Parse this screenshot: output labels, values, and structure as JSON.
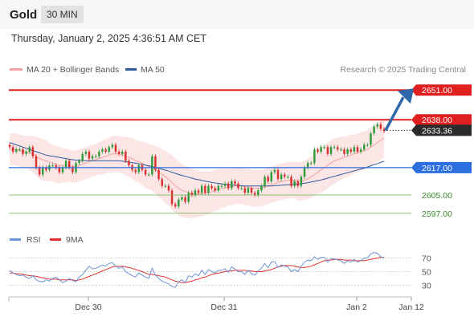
{
  "header": {
    "title": "Gold",
    "timeframe": "30 MIN"
  },
  "datetime": "Thursday, January 2, 2025 4:36:51 AM CET",
  "copyright": "Research © 2025 Trading Central",
  "colors": {
    "up": "#2e9a3a",
    "down": "#d8302f",
    "ma50": "#2d5c9e",
    "bollinger": "#f4a0a0",
    "resistance": "#e02020",
    "support": "#2e6fe0",
    "target_green": "#63b04a",
    "rsi": "#6d93d6",
    "rsi_ma": "#e03030",
    "arrow": "#2f67a8"
  },
  "chart_data": [
    {
      "type": "candlestick",
      "legend": [
        "MA 20 + Bollinger Bands",
        "MA 50"
      ],
      "ylim": [
        2592,
        2656
      ],
      "x_ticks": [
        "Dec 30",
        "Dec 31",
        "Jan 2",
        "Jan 12"
      ],
      "current_price": 2633.36,
      "levels": [
        {
          "label": "2651.00",
          "value": 2651.0,
          "kind": "resistance"
        },
        {
          "label": "2638.00",
          "value": 2638.0,
          "kind": "resistance"
        },
        {
          "label": "2633.36",
          "value": 2633.36,
          "kind": "last"
        },
        {
          "label": "2617.00",
          "value": 2617.0,
          "kind": "support"
        },
        {
          "label": "2605.00",
          "value": 2605.0,
          "kind": "target"
        },
        {
          "label": "2597.00",
          "value": 2597.0,
          "kind": "target"
        }
      ],
      "close": [
        2626,
        2624,
        2625,
        2625,
        2623,
        2624,
        2626,
        2622,
        2617,
        2614,
        2617,
        2616,
        2618,
        2618,
        2617,
        2615,
        2617,
        2620,
        2617,
        2615,
        2619,
        2620,
        2623,
        2624,
        2621,
        2622,
        2622,
        2624,
        2625,
        2624,
        2626,
        2627,
        2624,
        2623,
        2624,
        2620,
        2618,
        2616,
        2615,
        2618,
        2616,
        2614,
        2614,
        2622,
        2616,
        2612,
        2609,
        2609,
        2607,
        2601,
        2600,
        2603,
        2604,
        2602,
        2606,
        2605,
        2607,
        2606,
        2609,
        2606,
        2609,
        2608,
        2607,
        2609,
        2609,
        2610,
        2608,
        2611,
        2610,
        2608,
        2608,
        2606,
        2608,
        2606,
        2605,
        2607,
        2609,
        2613,
        2611,
        2615,
        2616,
        2612,
        2614,
        2613,
        2613,
        2609,
        2611,
        2609,
        2613,
        2617,
        2619,
        2619,
        2625,
        2624,
        2626,
        2626,
        2623,
        2626,
        2626,
        2625,
        2625,
        2623,
        2625,
        2624,
        2626,
        2624,
        2625,
        2627,
        2627,
        2632,
        2635,
        2636,
        2634,
        2633
      ],
      "open": [
        2627,
        2626,
        2624,
        2625,
        2625,
        2623,
        2624,
        2626,
        2622,
        2617,
        2614,
        2617,
        2616,
        2618,
        2618,
        2617,
        2615,
        2617,
        2620,
        2617,
        2615,
        2619,
        2620,
        2623,
        2624,
        2621,
        2622,
        2622,
        2624,
        2625,
        2624,
        2626,
        2627,
        2624,
        2623,
        2624,
        2620,
        2618,
        2616,
        2615,
        2618,
        2616,
        2614,
        2614,
        2622,
        2616,
        2612,
        2609,
        2609,
        2607,
        2601,
        2600,
        2603,
        2604,
        2602,
        2606,
        2605,
        2607,
        2606,
        2609,
        2606,
        2609,
        2608,
        2607,
        2609,
        2609,
        2610,
        2608,
        2611,
        2610,
        2608,
        2608,
        2606,
        2608,
        2606,
        2605,
        2607,
        2609,
        2613,
        2611,
        2615,
        2616,
        2612,
        2614,
        2613,
        2613,
        2609,
        2611,
        2609,
        2613,
        2617,
        2619,
        2619,
        2625,
        2624,
        2626,
        2626,
        2623,
        2626,
        2626,
        2625,
        2625,
        2623,
        2625,
        2624,
        2626,
        2624,
        2625,
        2627,
        2627,
        2632,
        2635,
        2636,
        2634
      ],
      "ma20": [
        2625,
        2625,
        2625,
        2624.5,
        2624,
        2624,
        2623.5,
        2623,
        2622,
        2621,
        2620.5,
        2620,
        2619.5,
        2619,
        2618.5,
        2618,
        2618,
        2618,
        2618,
        2617.5,
        2617.5,
        2618,
        2618.5,
        2619,
        2619.5,
        2620,
        2620.5,
        2621,
        2621.5,
        2622,
        2622.5,
        2623,
        2623,
        2623,
        2622.5,
        2622,
        2621.5,
        2621,
        2620,
        2619.5,
        2619,
        2618,
        2617.5,
        2617,
        2616,
        2615,
        2614,
        2613,
        2612,
        2610.5,
        2609,
        2608,
        2607,
        2606.5,
        2606,
        2605.5,
        2605.5,
        2605.5,
        2605.5,
        2606,
        2606,
        2606.5,
        2607,
        2607.5,
        2608,
        2608,
        2608.5,
        2608.5,
        2609,
        2609,
        2609,
        2608.5,
        2608.5,
        2608,
        2608,
        2608,
        2608,
        2608.5,
        2609,
        2609.5,
        2610,
        2610.5,
        2611,
        2611,
        2611.5,
        2611.5,
        2611.5,
        2611,
        2611,
        2611.5,
        2612,
        2613,
        2614,
        2615,
        2616,
        2617,
        2618,
        2619,
        2620,
        2620.5,
        2621,
        2621.5,
        2622,
        2622.5,
        2623,
        2623.5,
        2624,
        2624.5,
        2625,
        2626,
        2627,
        2628,
        2629,
        2630
      ],
      "ma50": [
        2628,
        2627.5,
        2627,
        2626.5,
        2626,
        2625.5,
        2625,
        2624.5,
        2624,
        2623.5,
        2623,
        2622.5,
        2622.2,
        2622,
        2621.7,
        2621.5,
        2621.2,
        2621,
        2620.7,
        2620.5,
        2620.3,
        2620.2,
        2620.1,
        2620,
        2620,
        2620,
        2620,
        2620,
        2620,
        2620,
        2620,
        2620,
        2620,
        2620,
        2619.8,
        2619.6,
        2619.4,
        2619.2,
        2619,
        2618.7,
        2618.4,
        2618.1,
        2617.8,
        2617.5,
        2617.1,
        2616.7,
        2616.3,
        2615.9,
        2615.5,
        2615,
        2614.5,
        2614,
        2613.6,
        2613.2,
        2612.8,
        2612.4,
        2612,
        2611.7,
        2611.4,
        2611.1,
        2610.8,
        2610.5,
        2610.3,
        2610.1,
        2609.9,
        2609.7,
        2609.5,
        2609.4,
        2609.3,
        2609.2,
        2609.1,
        2609,
        2609,
        2609,
        2609,
        2609,
        2609,
        2609,
        2609,
        2609,
        2609.1,
        2609.2,
        2609.3,
        2609.4,
        2609.5,
        2609.6,
        2609.7,
        2609.8,
        2610,
        2610.2,
        2610.4,
        2610.7,
        2611,
        2611.3,
        2611.6,
        2612,
        2612.4,
        2612.8,
        2613.2,
        2613.6,
        2614,
        2614.4,
        2614.8,
        2615.2,
        2615.6,
        2616,
        2616.4,
        2616.8,
        2617.3,
        2617.8,
        2618.3,
        2618.8,
        2619.3,
        2619.8
      ],
      "bb_width": [
        7,
        7,
        7,
        7,
        7,
        7,
        7.5,
        8,
        8.5,
        9,
        9,
        9,
        8.5,
        8,
        8,
        8,
        7.5,
        7.5,
        7,
        7,
        7,
        7,
        7,
        7,
        7,
        7,
        7,
        7,
        7.5,
        7.5,
        7.5,
        8,
        8,
        8,
        8,
        8.5,
        8.5,
        9,
        9,
        9,
        9.5,
        10,
        10,
        10,
        10.5,
        11,
        11,
        11.5,
        11.5,
        12,
        12,
        12,
        11.5,
        11.5,
        11,
        11,
        10.5,
        10,
        10,
        9.5,
        9.5,
        9,
        9,
        9,
        8.5,
        8.5,
        8,
        8,
        8,
        8,
        8,
        8,
        8,
        8,
        8,
        8,
        8,
        8,
        8,
        8,
        8,
        8,
        8,
        8,
        8,
        8,
        8,
        8.5,
        8.5,
        8.5,
        9,
        9,
        9.5,
        9.5,
        10,
        10,
        10,
        10,
        10,
        9.5,
        9.5,
        9,
        9,
        9,
        8.5,
        8.5,
        8.5,
        8.5,
        8.5,
        8.5,
        8.5,
        8.5,
        8.5,
        8.5
      ],
      "projection_arrow": {
        "from": 2633.36,
        "to": 2651.0
      }
    },
    {
      "type": "line",
      "legend": [
        "RSI",
        "9MA"
      ],
      "ylim": [
        20,
        80
      ],
      "y_ticks": [
        "70",
        "50",
        "30"
      ],
      "series": [
        {
          "name": "RSI",
          "values": [
            52,
            48,
            46,
            44,
            45,
            42,
            40,
            44,
            38,
            36,
            35,
            38,
            36,
            40,
            42,
            38,
            34,
            36,
            40,
            37,
            35,
            42,
            46,
            52,
            58,
            54,
            55,
            57,
            60,
            58,
            62,
            63,
            58,
            55,
            57,
            50,
            47,
            44,
            42,
            48,
            45,
            42,
            40,
            55,
            45,
            40,
            36,
            34,
            32,
            28,
            27,
            35,
            38,
            34,
            44,
            42,
            47,
            44,
            52,
            46,
            53,
            50,
            48,
            52,
            52,
            54,
            49,
            57,
            54,
            50,
            50,
            46,
            52,
            47,
            45,
            51,
            55,
            62,
            56,
            64,
            65,
            56,
            60,
            58,
            57,
            50,
            53,
            50,
            58,
            64,
            67,
            66,
            72,
            68,
            71,
            71,
            64,
            69,
            69,
            67,
            66,
            62,
            66,
            64,
            68,
            64,
            66,
            70,
            70,
            76,
            78,
            77,
            72,
            70
          ]
        },
        {
          "name": "9MA",
          "values": [
            48,
            48,
            47,
            47,
            46,
            45,
            44,
            44,
            43,
            42,
            41,
            40,
            39,
            39,
            39,
            38,
            38,
            38,
            38,
            38,
            37,
            38,
            39,
            41,
            43,
            45,
            47,
            49,
            51,
            53,
            55,
            57,
            58,
            58,
            58,
            57,
            56,
            55,
            53,
            52,
            50,
            48,
            46,
            46,
            45,
            44,
            43,
            42,
            40,
            38,
            36,
            35,
            34,
            34,
            35,
            36,
            38,
            39,
            41,
            42,
            44,
            46,
            47,
            48,
            49,
            50,
            51,
            51,
            52,
            52,
            52,
            52,
            51,
            51,
            50,
            50,
            50,
            51,
            52,
            53,
            55,
            57,
            58,
            59,
            59,
            59,
            58,
            57,
            56,
            56,
            57,
            58,
            60,
            62,
            64,
            66,
            67,
            67,
            68,
            68,
            68,
            67,
            67,
            67,
            66,
            66,
            66,
            66,
            67,
            68,
            69,
            70,
            71,
            71
          ]
        }
      ]
    }
  ]
}
